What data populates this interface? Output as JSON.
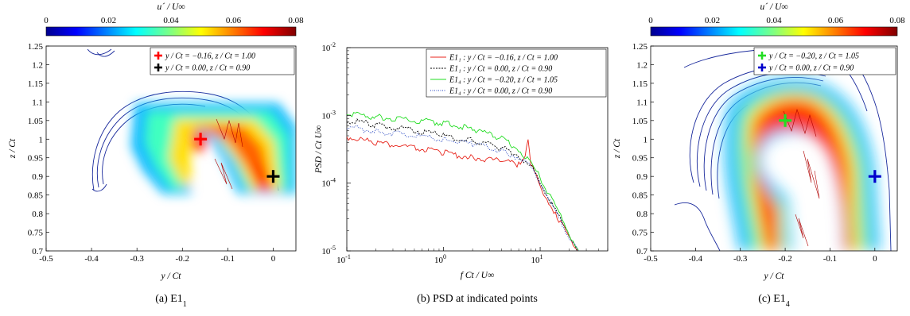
{
  "chart_data": [
    {
      "type": "heatmap",
      "caption": "(a)  E1",
      "caption_sub": "1",
      "colorbar": {
        "label": "u´ / U∞",
        "min": 0,
        "max": 0.08,
        "ticks": [
          "0",
          "0.02",
          "0.04",
          "0.06",
          "0.08"
        ]
      },
      "xlabel": "y / Ct",
      "ylabel": "z / Ct",
      "xlim": [
        -0.5,
        0.05
      ],
      "ylim": [
        0.7,
        1.25
      ],
      "xticks": [
        "-0.5",
        "-0.4",
        "-0.3",
        "-0.2",
        "-0.1",
        "0"
      ],
      "yticks": [
        "0.7",
        "0.75",
        "0.8",
        "0.85",
        "0.9",
        "0.95",
        "1",
        "1.05",
        "1.1",
        "1.15",
        "1.2",
        "1.25"
      ],
      "legend": [
        {
          "label": "y / Ct = −0.16,  z / Ct = 1.00",
          "color": "#ff0000"
        },
        {
          "label": "y / Ct =    0.00,  z / Ct = 0.90",
          "color": "#000000"
        }
      ],
      "points": [
        {
          "y": -0.16,
          "z": 1.0,
          "color": "#ff0000"
        },
        {
          "y": 0.0,
          "z": 0.9,
          "color": "#000000"
        }
      ]
    },
    {
      "type": "line",
      "caption": "(b)  PSD at indicated points",
      "xlabel": "f Ct / U∞",
      "ylabel": "PSD / Ct U∞",
      "xscale": "log",
      "yscale": "log",
      "xlim": [
        0.1,
        50
      ],
      "ylim": [
        1e-05,
        0.01
      ],
      "xticks": [
        {
          "base": "10",
          "exp": "-1"
        },
        {
          "base": "10",
          "exp": "0"
        },
        {
          "base": "10",
          "exp": "1"
        }
      ],
      "yticks": [
        {
          "base": "10",
          "exp": "-5"
        },
        {
          "base": "10",
          "exp": "-4"
        },
        {
          "base": "10",
          "exp": "-3"
        },
        {
          "base": "10",
          "exp": "-2"
        }
      ],
      "series": [
        {
          "name": "E1₁ : y / Ct = −0.16,  z / Ct = 1.00",
          "color": "#e8251c",
          "dash": "",
          "x": [
            0.1,
            0.2,
            0.5,
            1,
            2,
            4,
            6,
            7,
            7.5,
            8,
            10,
            15,
            20,
            25
          ],
          "y": [
            0.00048,
            0.0004,
            0.00033,
            0.00028,
            0.00024,
            0.00021,
            0.00019,
            0.00026,
            0.00044,
            0.0002,
            9e-05,
            3.2e-05,
            1.6e-05,
            1e-05
          ]
        },
        {
          "name": "E1₁ : y / Ct =    0.00,  z / Ct = 0.90",
          "color": "#000000",
          "dash": "2,1.5",
          "x": [
            0.1,
            0.2,
            0.5,
            1,
            2,
            4,
            6,
            8,
            10,
            15,
            20,
            25
          ],
          "y": [
            0.00085,
            0.00072,
            0.0006,
            0.0005,
            0.00043,
            0.00033,
            0.00026,
            0.00018,
            0.000105,
            3.5e-05,
            1.7e-05,
            1e-05
          ]
        },
        {
          "name": "E1₄ : y / Ct = −0.20,  z / Ct = 1.05",
          "color": "#22dd22",
          "dash": "",
          "x": [
            0.1,
            0.2,
            0.5,
            1,
            2,
            4,
            6,
            8,
            10,
            15,
            20,
            25
          ],
          "y": [
            0.00105,
            0.00095,
            0.00085,
            0.00076,
            0.00063,
            0.00046,
            0.00032,
            0.0002,
            0.00012,
            4e-05,
            1.8e-05,
            1e-05
          ]
        },
        {
          "name": "E1₄ : y / Ct =    0.00,  z / Ct = 0.90",
          "color": "#1f3fbf",
          "dash": "1,1.5",
          "x": [
            0.1,
            0.2,
            0.5,
            1,
            2,
            4,
            6,
            8,
            10,
            15,
            20,
            25
          ],
          "y": [
            0.00068,
            0.00058,
            0.0005,
            0.00044,
            0.00038,
            0.0003,
            0.00024,
            0.00017,
            0.0001,
            3.3e-05,
            1.6e-05,
            1e-05
          ]
        }
      ]
    },
    {
      "type": "heatmap",
      "caption": "(c)  E1",
      "caption_sub": "4",
      "colorbar": {
        "label": "u´ / U∞",
        "min": 0,
        "max": 0.08,
        "ticks": [
          "0",
          "0.02",
          "0.04",
          "0.06",
          "0.08"
        ]
      },
      "xlabel": "y / Ct",
      "ylabel": "z / Ct",
      "xlim": [
        -0.5,
        0.05
      ],
      "ylim": [
        0.7,
        1.25
      ],
      "xticks": [
        "-0.5",
        "-0.4",
        "-0.3",
        "-0.2",
        "-0.1",
        "0"
      ],
      "yticks": [
        "0.7",
        "0.75",
        "0.8",
        "0.85",
        "0.9",
        "0.95",
        "1",
        "1.05",
        "1.1",
        "1.15",
        "1.2",
        "1.25"
      ],
      "legend": [
        {
          "label": "y / Ct = −0.20,  z / Ct = 1.05",
          "color": "#22dd22"
        },
        {
          "label": "y / Ct =    0.00,  z / Ct = 0.90",
          "color": "#0000cc"
        }
      ],
      "points": [
        {
          "y": -0.2,
          "z": 1.05,
          "color": "#22dd22"
        },
        {
          "y": 0.0,
          "z": 0.9,
          "color": "#0000cc"
        }
      ]
    }
  ]
}
